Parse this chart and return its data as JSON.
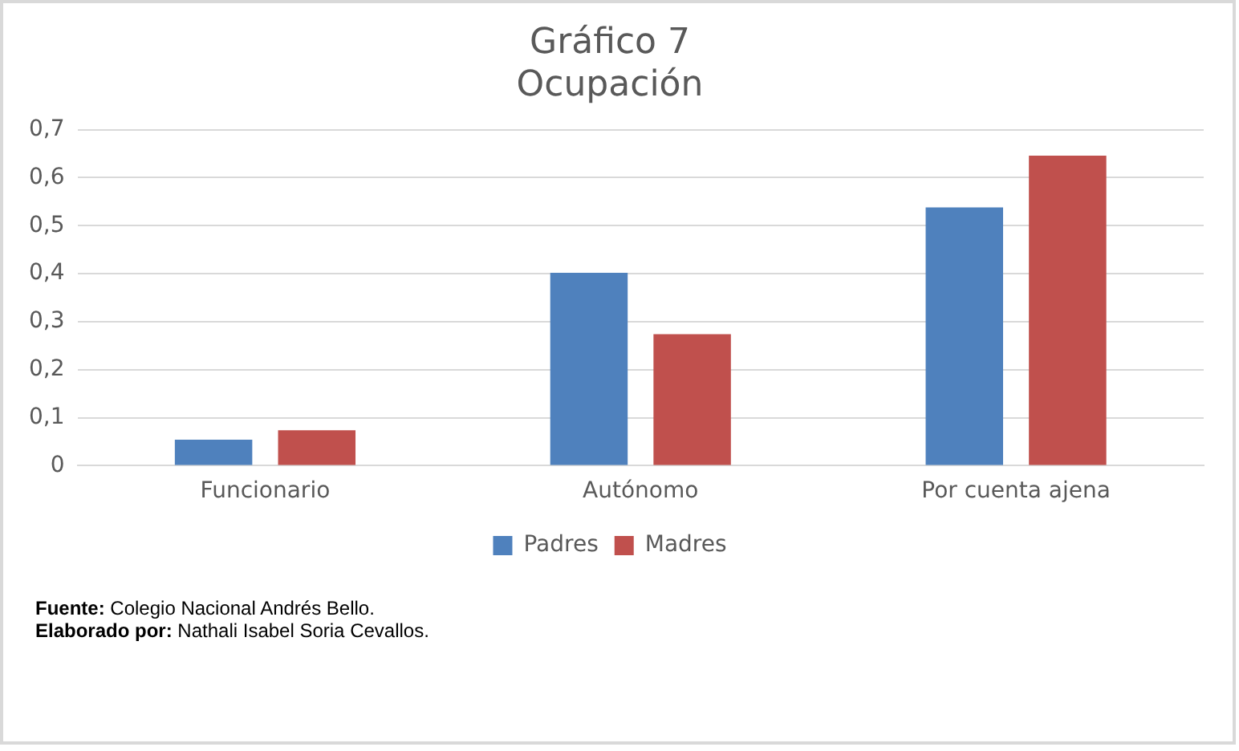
{
  "chart_data": {
    "type": "bar",
    "title": "Gráfico 7",
    "subtitle": "Ocupación",
    "categories": [
      "Funcionario",
      "Autónomo",
      "Por cuenta ajena"
    ],
    "series": [
      {
        "name": "Padres",
        "color": "#4f81bd",
        "values": [
          0.054,
          0.402,
          0.538
        ]
      },
      {
        "name": "Madres",
        "color": "#c0504d",
        "values": [
          0.074,
          0.274,
          0.646
        ]
      }
    ],
    "ylim": [
      0,
      0.7
    ],
    "yticks": [
      0,
      {
        "value": 0.1,
        "label": "0,1"
      },
      {
        "value": 0.2,
        "label": "0,2"
      },
      {
        "value": 0.3,
        "label": "0,3"
      },
      {
        "value": 0.4,
        "label": "0,4"
      },
      {
        "value": 0.5,
        "label": "0,5"
      },
      {
        "value": 0.6,
        "label": "0,6"
      },
      {
        "value": 0.7,
        "label": "0,7"
      }
    ],
    "grid": "y",
    "legend": "bottom",
    "annotations": [
      "Fuente: Colegio Nacional Andrés Bello.",
      "Elaborado por: Nathali Isabel Soria Cevallos."
    ]
  }
}
